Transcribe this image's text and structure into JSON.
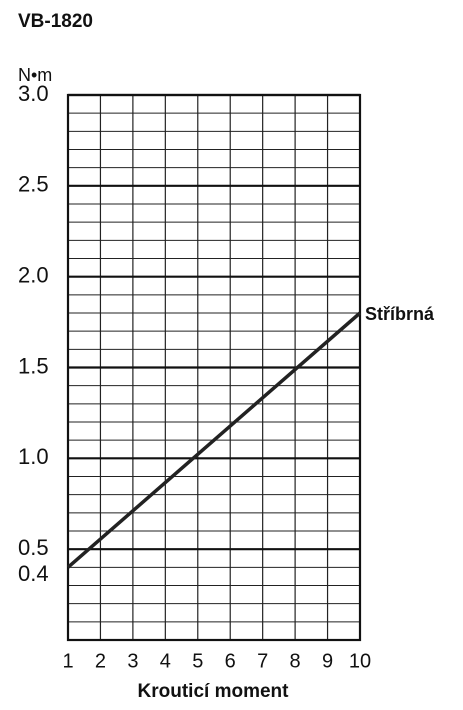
{
  "chart_data": {
    "type": "line",
    "title": "VB-1820",
    "y_unit": "N•m",
    "xlabel": "Krouticí moment",
    "x": [
      1,
      10
    ],
    "series": [
      {
        "name": "Stříbrná",
        "color": "#222222",
        "values": [
          0.4,
          1.8
        ]
      }
    ],
    "xlim": [
      1,
      10
    ],
    "xticks": [
      1,
      2,
      3,
      4,
      5,
      6,
      7,
      8,
      9,
      10
    ],
    "ylim": [
      0,
      3
    ],
    "yticks": [
      {
        "value": 0.4,
        "label": "0.4"
      },
      {
        "value": 0.5,
        "label": "0.5"
      },
      {
        "value": 1,
        "label": "1.0"
      },
      {
        "value": 1.5,
        "label": "1.5"
      },
      {
        "value": 2,
        "label": "2.0"
      },
      {
        "value": 2.5,
        "label": "2.5"
      },
      {
        "value": 3,
        "label": "3.0"
      }
    ],
    "minor_grid_y": [
      0.1,
      0.2,
      0.3,
      0.4,
      0.6,
      0.7,
      0.8,
      0.9,
      1.1,
      1.2,
      1.3,
      1.4,
      1.6,
      1.7,
      1.8,
      1.9,
      2.1,
      2.2,
      2.3,
      2.4,
      2.6,
      2.7,
      2.8,
      2.9
    ],
    "grid": true
  }
}
